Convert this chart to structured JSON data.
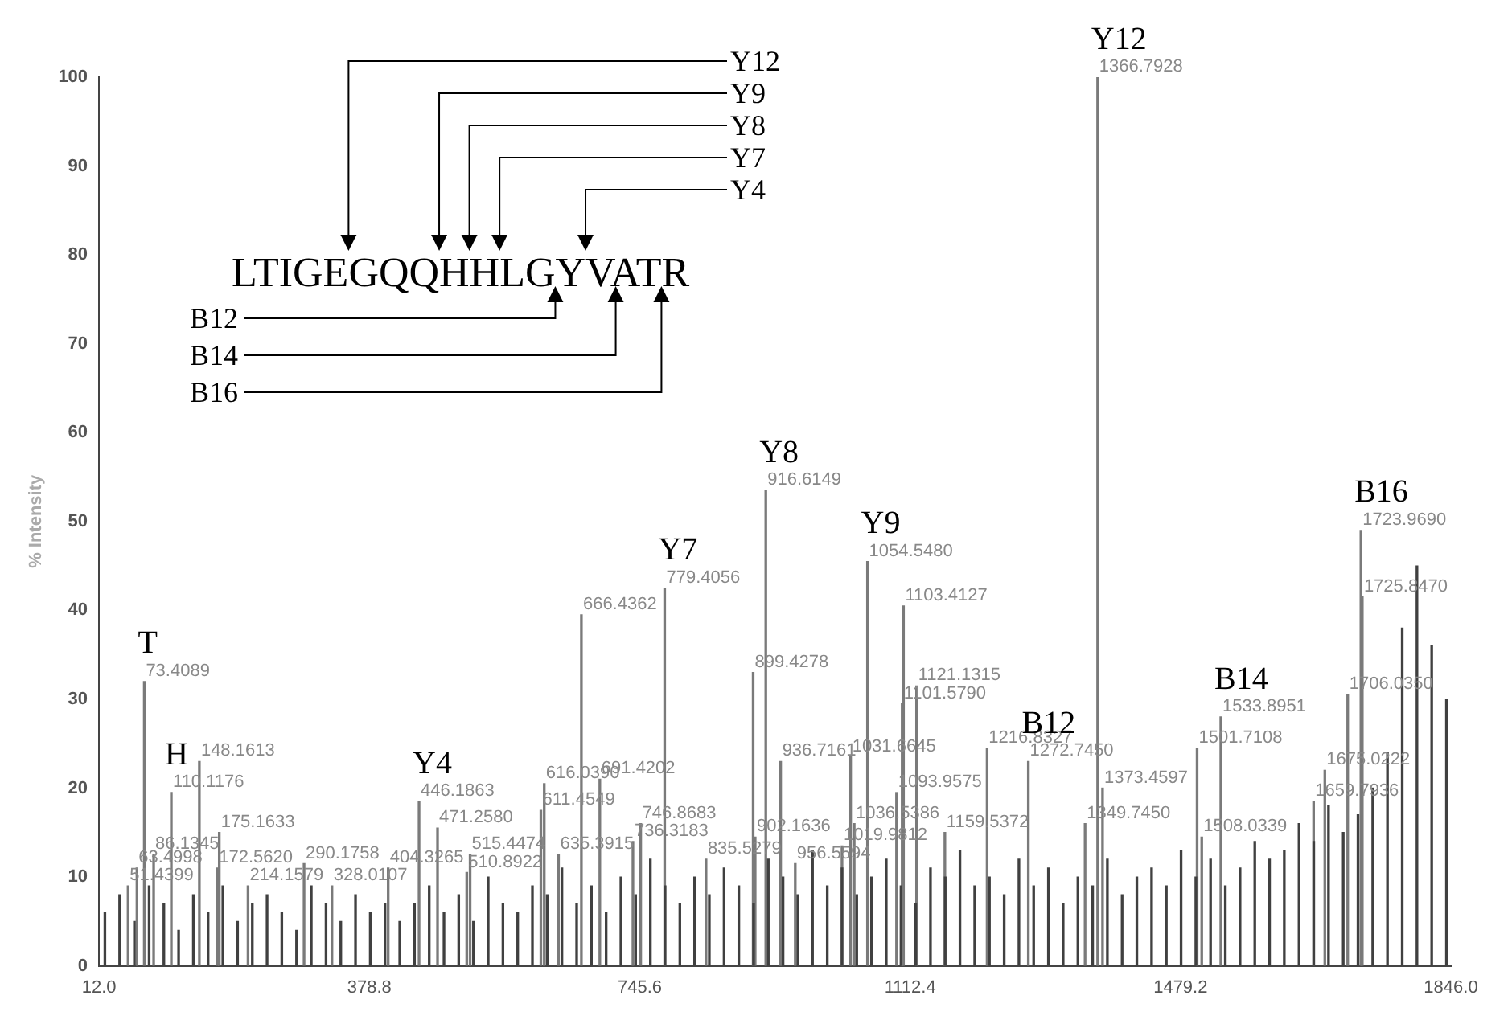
{
  "chart_data": {
    "type": "bar",
    "ylabel": "% Intensity",
    "xlim": [
      12,
      1846
    ],
    "xticks": [
      {
        "value": 12,
        "label": "12.0"
      },
      {
        "value": 378.8,
        "label": "378.8"
      },
      {
        "value": 745.6,
        "label": "745.6"
      },
      {
        "value": 1112.4,
        "label": "1112.4"
      },
      {
        "value": 1479.2,
        "label": "1479.2"
      },
      {
        "value": 1846,
        "label": "1846.0"
      }
    ],
    "ylim": [
      0,
      100
    ],
    "yticks": [
      0,
      10,
      20,
      30,
      40,
      50,
      60,
      70,
      80,
      90,
      100
    ],
    "grid": false,
    "legend": false,
    "series": [
      {
        "color": "#404040",
        "x": [
          20,
          40,
          60,
          80,
          100,
          120,
          140,
          160,
          180,
          200,
          220,
          240,
          260,
          280,
          300,
          320,
          340,
          360,
          380,
          400,
          420,
          440,
          460,
          480,
          500,
          520,
          540,
          560,
          580,
          600,
          620,
          640,
          660,
          680,
          700,
          720,
          740,
          760,
          780,
          800,
          820,
          840,
          860,
          880,
          900,
          920,
          940,
          960,
          980,
          1000,
          1020,
          1040,
          1060,
          1080,
          1100,
          1120,
          1140,
          1160,
          1180,
          1200,
          1220,
          1240,
          1260,
          1280,
          1300,
          1320,
          1340,
          1360,
          1380,
          1400,
          1420,
          1440,
          1460,
          1480,
          1500,
          1520,
          1540,
          1560,
          1580,
          1600,
          1620,
          1640,
          1660,
          1680,
          1700,
          1720,
          1740,
          1760,
          1780,
          1800,
          1820,
          1840
        ],
        "values": [
          6,
          8,
          5,
          9,
          7,
          4,
          8,
          6,
          9,
          5,
          7,
          8,
          6,
          4,
          9,
          7,
          5,
          8,
          6,
          7,
          5,
          7,
          9,
          6,
          8,
          5,
          10,
          7,
          6,
          9,
          8,
          11,
          7,
          9,
          6,
          10,
          8,
          12,
          9,
          7,
          10,
          8,
          11,
          9,
          7,
          12,
          10,
          8,
          13,
          9,
          11,
          8,
          10,
          12,
          9,
          7,
          11,
          10,
          13,
          9,
          10,
          8,
          12,
          9,
          11,
          7,
          10,
          9,
          12,
          8,
          10,
          11,
          9,
          13,
          10,
          12,
          9,
          11,
          14,
          12,
          13,
          16,
          14,
          18,
          15,
          17,
          20,
          24,
          38,
          45,
          36,
          30
        ]
      },
      {
        "color": "#7a7a7a",
        "x": [
          51.4399,
          63.4998,
          73.4089,
          86.1345,
          110.1176,
          148.1613,
          172.562,
          175.1633,
          214.1579,
          290.1758,
          328.0107,
          404.3265,
          446.1863,
          471.258,
          510.8922,
          515.4474,
          611.4549,
          616.039,
          635.3915,
          666.4362,
          691.4202,
          736.3183,
          746.8683,
          779.4056,
          835.5279,
          899.4278,
          902.1636,
          916.6149,
          936.7161,
          956.5594,
          1019.9812,
          1031.6645,
          1036.5386,
          1054.548,
          1093.9575,
          1101.579,
          1103.4127,
          1121.1315,
          1159.5372,
          1216.8327,
          1272.745,
          1349.745,
          1366.7928,
          1373.4597,
          1501.7108,
          1508.0339,
          1533.8951,
          1659.7936,
          1675.0222,
          1706.035,
          1723.969,
          1725.847
        ],
        "values": [
          9,
          11,
          32,
          12.5,
          19.5,
          23,
          11,
          15,
          9,
          11.5,
          9,
          11,
          18.5,
          15.5,
          10.5,
          12.5,
          17.5,
          20.5,
          12.5,
          39.5,
          21,
          14,
          16,
          42.5,
          12,
          33,
          14.5,
          53.5,
          23,
          11.5,
          13.5,
          23.5,
          16,
          45.5,
          19.5,
          29.5,
          40.5,
          31.5,
          15,
          24.5,
          23,
          16,
          100,
          20,
          24.5,
          14.5,
          28,
          18.5,
          22,
          30.5,
          49,
          41.5
        ]
      }
    ],
    "annotations": [
      "LTIGEGQQHHLGYVATR",
      "Y12",
      "Y9",
      "Y8",
      "Y7",
      "Y4",
      "B12",
      "B14",
      "B16",
      {
        "text": "51.4399",
        "x": 51.4399,
        "y": 9
      },
      {
        "text": "63.4998",
        "x": 63.4998,
        "y": 11
      },
      {
        "text": "73.4089",
        "x": 73.4089,
        "y": 32
      },
      {
        "text": "T",
        "x": 73.4089,
        "y": 32
      },
      {
        "text": "86.1345",
        "x": 86.1345,
        "y": 12.5
      },
      {
        "text": "110.1176",
        "x": 110.1176,
        "y": 19.5
      },
      {
        "text": "H",
        "x": 110.1176,
        "y": 19.5
      },
      {
        "text": "148.1613",
        "x": 148.1613,
        "y": 23
      },
      {
        "text": "172.5620",
        "x": 172.562,
        "y": 11
      },
      {
        "text": "175.1633",
        "x": 175.1633,
        "y": 15
      },
      {
        "text": "214.1579",
        "x": 214.1579,
        "y": 9
      },
      {
        "text": "290.1758",
        "x": 290.1758,
        "y": 11.5
      },
      {
        "text": "328.0107",
        "x": 328.0107,
        "y": 9
      },
      {
        "text": "404.3265",
        "x": 404.3265,
        "y": 11
      },
      {
        "text": "446.1863",
        "x": 446.1863,
        "y": 18.5
      },
      {
        "text": "Y4",
        "x": 446.1863,
        "y": 18.5
      },
      {
        "text": "471.2580",
        "x": 471.258,
        "y": 15.5
      },
      {
        "text": "510.8922",
        "x": 510.8922,
        "y": 10.5
      },
      {
        "text": "515.4474",
        "x": 515.4474,
        "y": 12.5
      },
      {
        "text": "611.4549",
        "x": 611.4549,
        "y": 17.5
      },
      {
        "text": "616.0390",
        "x": 616.039,
        "y": 20.5
      },
      {
        "text": "635.3915",
        "x": 635.3915,
        "y": 12.5
      },
      {
        "text": "666.4362",
        "x": 666.4362,
        "y": 39.5
      },
      {
        "text": "691.4202",
        "x": 691.4202,
        "y": 21
      },
      {
        "text": "736.3183",
        "x": 736.3183,
        "y": 14
      },
      {
        "text": "746.8683",
        "x": 746.8683,
        "y": 16
      },
      {
        "text": "779.4056",
        "x": 779.4056,
        "y": 42.5
      },
      {
        "text": "Y7",
        "x": 779.4056,
        "y": 42.5
      },
      {
        "text": "835.5279",
        "x": 835.5279,
        "y": 12
      },
      {
        "text": "899.4278",
        "x": 899.4278,
        "y": 33
      },
      {
        "text": "902.1636",
        "x": 902.1636,
        "y": 14.5
      },
      {
        "text": "916.6149",
        "x": 916.6149,
        "y": 53.5
      },
      {
        "text": "Y8",
        "x": 916.6149,
        "y": 53.5
      },
      {
        "text": "936.7161",
        "x": 936.7161,
        "y": 23
      },
      {
        "text": "956.5594",
        "x": 956.5594,
        "y": 11.5
      },
      {
        "text": "1019.9812",
        "x": 1019.9812,
        "y": 13.5
      },
      {
        "text": "1031.6645",
        "x": 1031.6645,
        "y": 23.5
      },
      {
        "text": "1036.5386",
        "x": 1036.5386,
        "y": 16
      },
      {
        "text": "1054.5480",
        "x": 1054.548,
        "y": 45.5
      },
      {
        "text": "Y9",
        "x": 1054.548,
        "y": 45.5
      },
      {
        "text": "1093.9575",
        "x": 1093.9575,
        "y": 19.5
      },
      {
        "text": "1101.5790",
        "x": 1101.579,
        "y": 29.5
      },
      {
        "text": "1103.4127",
        "x": 1103.4127,
        "y": 40.5
      },
      {
        "text": "1121.1315",
        "x": 1121.1315,
        "y": 31.5
      },
      {
        "text": "1159.5372",
        "x": 1159.5372,
        "y": 15
      },
      {
        "text": "1216.8327",
        "x": 1216.8327,
        "y": 24.5
      },
      {
        "text": "1272.7450",
        "x": 1272.745,
        "y": 23
      },
      {
        "text": "B12",
        "x": 1272.745,
        "y": 23
      },
      {
        "text": "1349.7450",
        "x": 1349.745,
        "y": 16
      },
      {
        "text": "1366.7928",
        "x": 1366.7928,
        "y": 100
      },
      {
        "text": "Y12",
        "x": 1366.7928,
        "y": 100
      },
      {
        "text": "1373.4597",
        "x": 1373.4597,
        "y": 20
      },
      {
        "text": "1501.7108",
        "x": 1501.7108,
        "y": 24.5
      },
      {
        "text": "1508.0339",
        "x": 1508.0339,
        "y": 14.5
      },
      {
        "text": "1533.8951",
        "x": 1533.8951,
        "y": 28
      },
      {
        "text": "B14",
        "x": 1533.8951,
        "y": 28
      },
      {
        "text": "1659.7936",
        "x": 1659.7936,
        "y": 18.5
      },
      {
        "text": "1675.0222",
        "x": 1675.0222,
        "y": 22
      },
      {
        "text": "1706.0350",
        "x": 1706.035,
        "y": 30.5
      },
      {
        "text": "1723.9690",
        "x": 1723.969,
        "y": 49
      },
      {
        "text": "B16",
        "x": 1723.969,
        "y": 49
      },
      {
        "text": "1725.8470",
        "x": 1725.847,
        "y": 41.5
      }
    ]
  }
}
